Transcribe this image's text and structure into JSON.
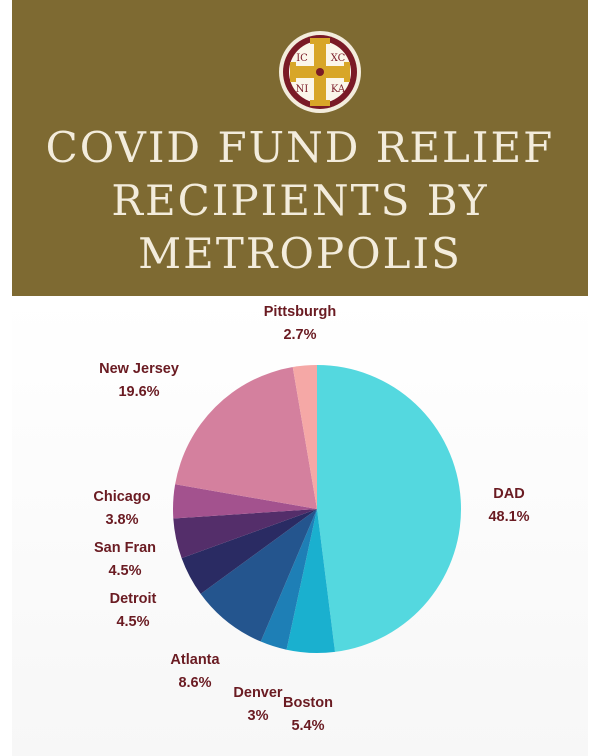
{
  "header": {
    "emblem": {
      "icon": "byzantine-cross-seal-icon",
      "text_tl": "IC",
      "text_tr": "XC",
      "text_bl": "NI",
      "text_br": "KA"
    },
    "title_lines": [
      "COVID FUND RELIEF",
      "RECIPIENTS BY",
      "METROPOLIS"
    ],
    "background_color": "#7e6a32",
    "text_color": "#f3ecdc"
  },
  "chart_data": {
    "type": "pie",
    "title": "COVID FUND RELIEF RECIPIENTS BY METROPOLIS",
    "label_color": "#6a1b22",
    "slices": [
      {
        "name": "DAD",
        "label": "48.1%",
        "value": 48.1,
        "color": "#54d8df"
      },
      {
        "name": "Boston",
        "label": "5.4%",
        "value": 5.4,
        "color": "#1ab0cf"
      },
      {
        "name": "Denver",
        "label": "3%",
        "value": 3.0,
        "color": "#1e7fb6"
      },
      {
        "name": "Atlanta",
        "label": "8.6%",
        "value": 8.6,
        "color": "#24558e"
      },
      {
        "name": "Detroit",
        "label": "4.5%",
        "value": 4.5,
        "color": "#2a2b63"
      },
      {
        "name": "San Fran",
        "label": "4.5%",
        "value": 4.5,
        "color": "#542e6a"
      },
      {
        "name": "Chicago",
        "label": "3.8%",
        "value": 3.8,
        "color": "#a3528e"
      },
      {
        "name": "New Jersey",
        "label": "19.6%",
        "value": 19.6,
        "color": "#d4809e"
      },
      {
        "name": "Pittsburgh",
        "label": "2.7%",
        "value": 2.7,
        "color": "#f5a8a6"
      }
    ]
  }
}
